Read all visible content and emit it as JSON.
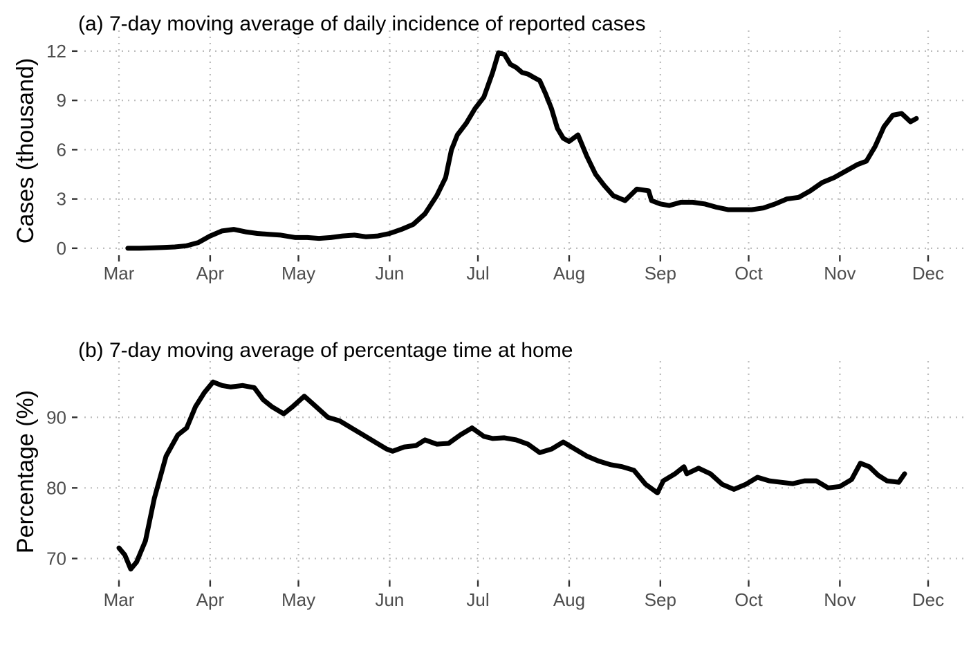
{
  "chart_data": [
    {
      "type": "line",
      "title": "(a) 7-day moving average of daily incidence of reported cases",
      "xlabel": "",
      "ylabel": "Cases (thousand)",
      "x_tick_labels": [
        "Mar",
        "Apr",
        "May",
        "Jun",
        "Jul",
        "Aug",
        "Sep",
        "Oct",
        "Nov",
        "Dec"
      ],
      "y_ticks": [
        0,
        3,
        6,
        9,
        12
      ],
      "ylim": [
        -0.3,
        12.5
      ],
      "grid": true,
      "legend": "none",
      "color": "#000000",
      "series": [
        {
          "x": [
            "2020-03-04",
            "2020-03-08",
            "2020-03-12",
            "2020-03-16",
            "2020-03-20",
            "2020-03-24",
            "2020-03-28",
            "2020-04-01",
            "2020-04-05",
            "2020-04-09",
            "2020-04-13",
            "2020-04-17",
            "2020-04-21",
            "2020-04-25",
            "2020-04-30",
            "2020-05-04",
            "2020-05-08",
            "2020-05-12",
            "2020-05-16",
            "2020-05-20",
            "2020-05-24",
            "2020-05-28",
            "2020-06-01",
            "2020-06-05",
            "2020-06-09",
            "2020-06-13",
            "2020-06-17",
            "2020-06-20",
            "2020-06-22",
            "2020-06-24",
            "2020-06-27",
            "2020-06-30",
            "2020-07-03",
            "2020-07-06",
            "2020-07-08",
            "2020-07-10",
            "2020-07-12",
            "2020-07-14",
            "2020-07-16",
            "2020-07-18",
            "2020-07-20",
            "2020-07-22",
            "2020-07-24",
            "2020-07-26",
            "2020-07-28",
            "2020-07-30",
            "2020-08-01",
            "2020-08-04",
            "2020-08-07",
            "2020-08-10",
            "2020-08-13",
            "2020-08-16",
            "2020-08-20",
            "2020-08-24",
            "2020-08-28",
            "2020-08-29",
            "2020-09-01",
            "2020-09-04",
            "2020-09-08",
            "2020-09-12",
            "2020-09-16",
            "2020-09-20",
            "2020-09-24",
            "2020-09-28",
            "2020-10-02",
            "2020-10-06",
            "2020-10-10",
            "2020-10-14",
            "2020-10-18",
            "2020-10-22",
            "2020-10-26",
            "2020-10-30",
            "2020-11-03",
            "2020-11-07",
            "2020-11-10",
            "2020-11-13",
            "2020-11-16",
            "2020-11-19",
            "2020-11-22",
            "2020-11-25",
            "2020-11-27"
          ],
          "y": [
            0.0,
            0.0,
            0.02,
            0.05,
            0.08,
            0.15,
            0.35,
            0.75,
            1.05,
            1.15,
            1.0,
            0.9,
            0.85,
            0.8,
            0.65,
            0.65,
            0.6,
            0.65,
            0.75,
            0.8,
            0.7,
            0.75,
            0.9,
            1.15,
            1.45,
            2.1,
            3.2,
            4.3,
            6.0,
            6.9,
            7.6,
            8.5,
            9.2,
            10.7,
            11.9,
            11.8,
            11.2,
            11.0,
            10.7,
            10.6,
            10.4,
            10.2,
            9.4,
            8.5,
            7.3,
            6.7,
            6.5,
            6.9,
            5.6,
            4.5,
            3.8,
            3.2,
            2.9,
            3.6,
            3.5,
            2.9,
            2.7,
            2.6,
            2.8,
            2.8,
            2.7,
            2.5,
            2.35,
            2.35,
            2.35,
            2.45,
            2.7,
            3.0,
            3.1,
            3.5,
            4.0,
            4.3,
            4.7,
            5.1,
            5.3,
            6.2,
            7.4,
            8.1,
            8.2,
            7.7,
            7.9
          ]
        }
      ]
    },
    {
      "type": "line",
      "title": "(b) 7-day moving average of percentage time at home",
      "xlabel": "",
      "ylabel": "Percentage (%)",
      "x_tick_labels": [
        "Mar",
        "Apr",
        "May",
        "Jun",
        "Jul",
        "Aug",
        "Sep",
        "Oct",
        "Nov",
        "Dec"
      ],
      "y_ticks": [
        70,
        80,
        90
      ],
      "ylim": [
        67,
        96.2
      ],
      "grid": true,
      "legend": "none",
      "color": "#000000",
      "series": [
        {
          "x": [
            "2020-03-01",
            "2020-03-03",
            "2020-03-05",
            "2020-03-07",
            "2020-03-10",
            "2020-03-13",
            "2020-03-17",
            "2020-03-21",
            "2020-03-24",
            "2020-03-27",
            "2020-03-30",
            "2020-04-02",
            "2020-04-05",
            "2020-04-08",
            "2020-04-12",
            "2020-04-16",
            "2020-04-19",
            "2020-04-22",
            "2020-04-26",
            "2020-04-29",
            "2020-05-03",
            "2020-05-07",
            "2020-05-11",
            "2020-05-15",
            "2020-05-19",
            "2020-05-23",
            "2020-05-27",
            "2020-05-31",
            "2020-06-02",
            "2020-06-06",
            "2020-06-10",
            "2020-06-13",
            "2020-06-17",
            "2020-06-21",
            "2020-06-25",
            "2020-06-29",
            "2020-07-03",
            "2020-07-06",
            "2020-07-10",
            "2020-07-14",
            "2020-07-18",
            "2020-07-22",
            "2020-07-26",
            "2020-07-30",
            "2020-08-03",
            "2020-08-07",
            "2020-08-11",
            "2020-08-15",
            "2020-08-19",
            "2020-08-23",
            "2020-08-27",
            "2020-08-31",
            "2020-09-02",
            "2020-09-06",
            "2020-09-09",
            "2020-09-10",
            "2020-09-14",
            "2020-09-18",
            "2020-09-22",
            "2020-09-26",
            "2020-09-30",
            "2020-10-04",
            "2020-10-08",
            "2020-10-12",
            "2020-10-16",
            "2020-10-20",
            "2020-10-24",
            "2020-10-28",
            "2020-11-01",
            "2020-11-05",
            "2020-11-08",
            "2020-11-11",
            "2020-11-14",
            "2020-11-17",
            "2020-11-21",
            "2020-11-23"
          ],
          "y": [
            71.5,
            70.5,
            68.5,
            69.5,
            72.5,
            78.5,
            84.5,
            87.5,
            88.5,
            91.5,
            93.5,
            95.0,
            94.5,
            94.3,
            94.5,
            94.2,
            92.5,
            91.5,
            90.5,
            91.5,
            93.0,
            91.5,
            90.0,
            89.5,
            88.5,
            87.5,
            86.5,
            85.5,
            85.2,
            85.8,
            86.0,
            86.8,
            86.2,
            86.3,
            87.5,
            88.5,
            87.3,
            87.0,
            87.1,
            86.8,
            86.2,
            85.0,
            85.5,
            86.5,
            85.5,
            84.5,
            83.8,
            83.3,
            83.0,
            82.5,
            80.5,
            79.3,
            81.0,
            82.0,
            83.0,
            82.0,
            82.8,
            82.0,
            80.5,
            79.8,
            80.5,
            81.5,
            81.0,
            80.8,
            80.6,
            81.0,
            81.0,
            80.0,
            80.2,
            81.2,
            83.5,
            83.0,
            81.8,
            81.0,
            80.8,
            82.0
          ]
        }
      ]
    }
  ]
}
